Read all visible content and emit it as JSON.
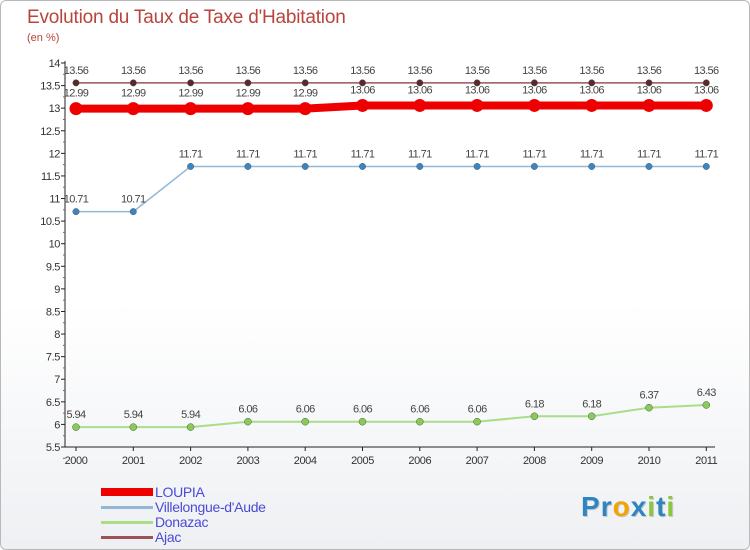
{
  "page": {
    "title": "Evolution du Taux de Taxe d'Habitation",
    "unit": "(en %)",
    "logo": {
      "text": "Proxiti",
      "letters": [
        {
          "ch": "P",
          "color": "#2e86c1"
        },
        {
          "ch": "r",
          "color": "#2e86c1"
        },
        {
          "ch": "o",
          "color": "#f0a30a"
        },
        {
          "ch": "x",
          "color": "#2e86c1"
        },
        {
          "ch": "i",
          "color": "#8cc63f"
        },
        {
          "ch": "t",
          "color": "#2e86c1"
        },
        {
          "ch": "i",
          "color": "#8cc63f"
        }
      ]
    }
  },
  "chart_data": {
    "type": "line",
    "title": "Evolution du Taux de Taxe d'Habitation",
    "ylabel": "(en %)",
    "xlabel": "",
    "x": [
      "2000",
      "2001",
      "2002",
      "2003",
      "2004",
      "2005",
      "2006",
      "2007",
      "2008",
      "2009",
      "2010",
      "2011"
    ],
    "ylim": [
      5.5,
      14
    ],
    "yticks": [
      "5.5",
      "6",
      "6.5",
      "7",
      "7.5",
      "8",
      "8.5",
      "9",
      "9.5",
      "10",
      "10.5",
      "11",
      "11.5",
      "12",
      "12.5",
      "13",
      "13.5",
      "14"
    ],
    "grid": false,
    "legend_position": "bottom-left",
    "series": [
      {
        "name": "Ajac",
        "color": "#9b5358",
        "marker": "#5a2a2a",
        "width": 1.5,
        "radius": 3.2,
        "values": [
          13.56,
          13.56,
          13.56,
          13.56,
          13.56,
          13.56,
          13.56,
          13.56,
          13.56,
          13.56,
          13.56,
          13.56
        ],
        "labels": [
          "13.56",
          "13.56",
          "13.56",
          "13.56",
          "13.56",
          "13.56",
          "13.56",
          "13.56",
          "13.56",
          "13.56",
          "13.56",
          "13.56"
        ]
      },
      {
        "name": "Donazac",
        "color": "#aadd88",
        "marker": "#88cc55",
        "width": 2,
        "radius": 3.5,
        "values": [
          5.94,
          5.94,
          5.94,
          6.06,
          6.06,
          6.06,
          6.06,
          6.06,
          6.18,
          6.18,
          6.37,
          6.43
        ],
        "labels": [
          "5.94",
          "5.94",
          "5.94",
          "6.06",
          "6.06",
          "6.06",
          "6.06",
          "6.06",
          "6.18",
          "6.18",
          "6.37",
          "6.43"
        ]
      },
      {
        "name": "Villelongue-d'Aude",
        "color": "#90b8d8",
        "marker": "#3a86c4",
        "width": 1.5,
        "radius": 3.2,
        "values": [
          10.71,
          10.71,
          11.71,
          11.71,
          11.71,
          11.71,
          11.71,
          11.71,
          11.71,
          11.71,
          11.71,
          11.71
        ],
        "labels": [
          "10.71",
          "10.71",
          "11.71",
          "11.71",
          "11.71",
          "11.71",
          "11.71",
          "11.71",
          "11.71",
          "11.71",
          "11.71",
          "11.71"
        ]
      },
      {
        "name": "LOUPIA",
        "color": "#ee0000",
        "marker": "#ee0000",
        "width": 8,
        "radius": 6.5,
        "values": [
          12.99,
          12.99,
          12.99,
          12.99,
          12.99,
          13.06,
          13.06,
          13.06,
          13.06,
          13.06,
          13.06,
          13.06
        ],
        "labels": [
          "12.99",
          "12.99",
          "12.99",
          "12.99",
          "12.99",
          "13.06",
          "13.06",
          "13.06",
          "13.06",
          "13.06",
          "13.06",
          "13.06"
        ]
      }
    ],
    "legend_order": [
      "LOUPIA",
      "Villelongue-d'Aude",
      "Donazac",
      "Ajac"
    ]
  }
}
